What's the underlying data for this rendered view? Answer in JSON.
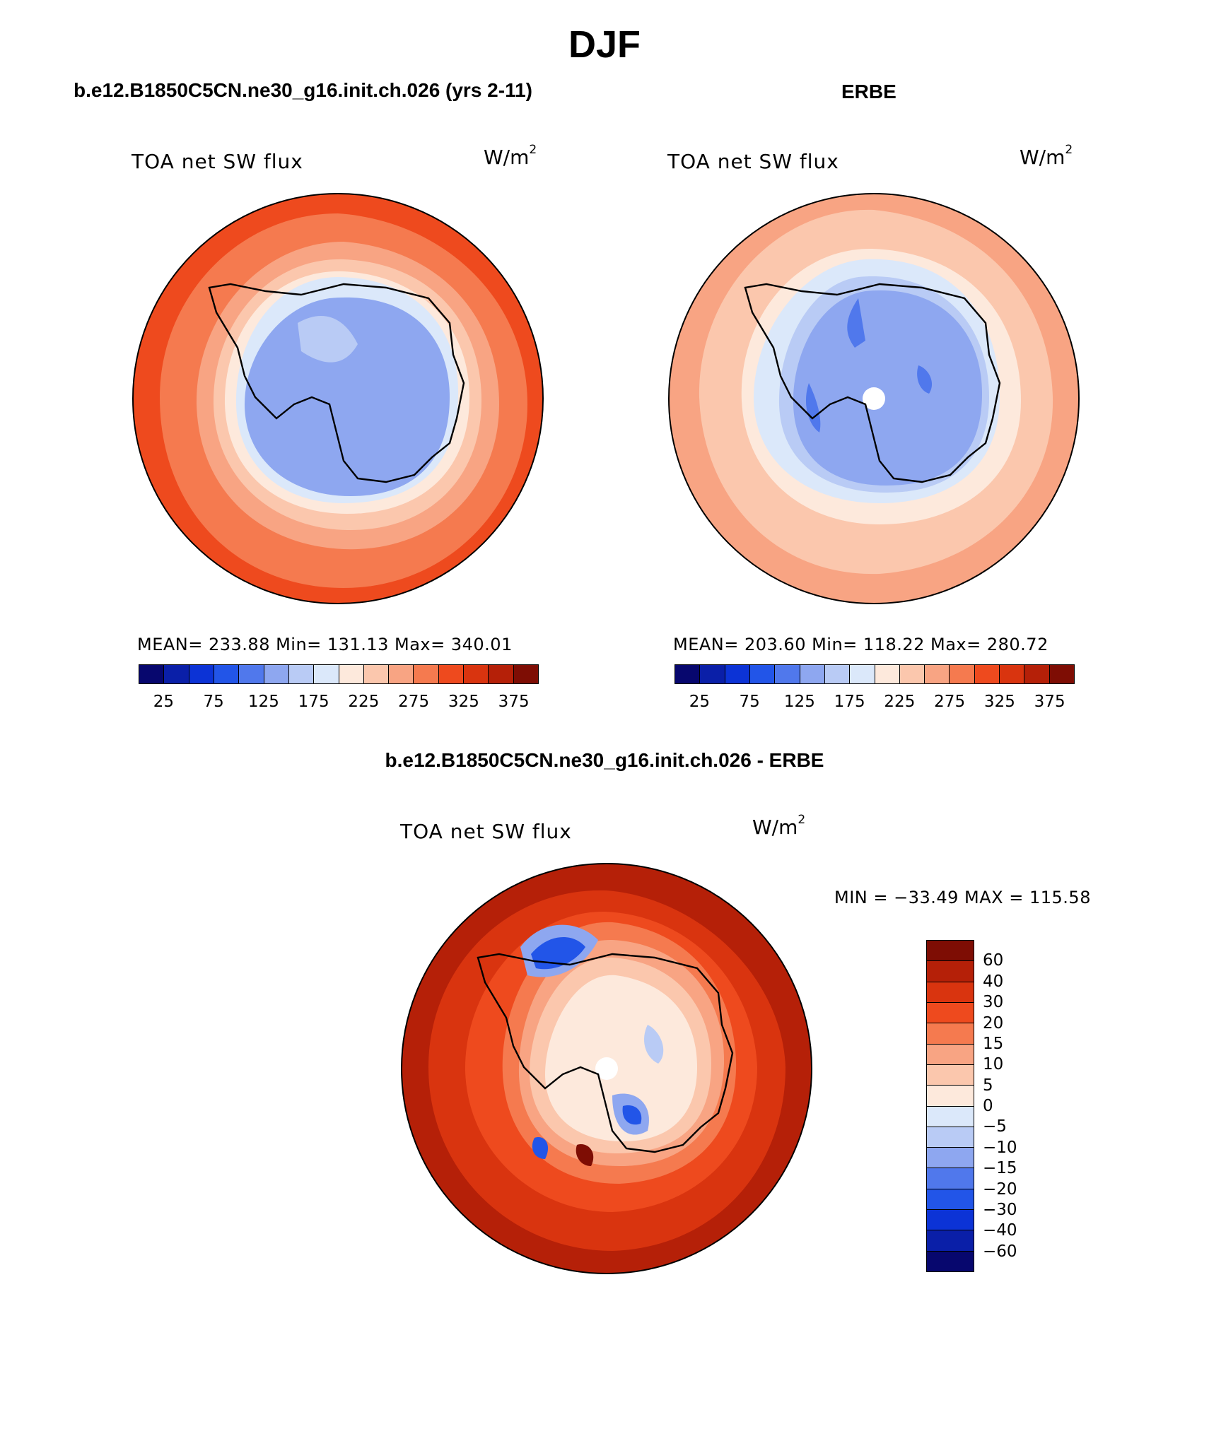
{
  "title": "DJF",
  "panels": [
    {
      "header": "b.e12.B1850C5CN.ne30_g16.init.ch.026 (yrs 2-11)",
      "variable": "TOA net SW flux",
      "units_base": "W/m",
      "units_exp": "2",
      "stats": "MEAN= 233.88   Min= 131.13   Max= 340.01"
    },
    {
      "header": "ERBE",
      "variable": "TOA net SW flux",
      "units_base": "W/m",
      "units_exp": "2",
      "stats": "MEAN= 203.60   Min= 118.22   Max= 280.72"
    },
    {
      "header": "b.e12.B1850C5CN.ne30_g16.init.ch.026 - ERBE",
      "variable": "TOA net SW flux",
      "units_base": "W/m",
      "units_exp": "2",
      "stats": "MIN = −33.49 MAX = 115.58"
    }
  ],
  "colors": {
    "abs_scale": [
      "#07076e",
      "#0a1fa8",
      "#0c33d6",
      "#2255e8",
      "#5078ec",
      "#8ea7f0",
      "#b9cbf5",
      "#dbe8fa",
      "#fde9dc",
      "#fbc7ad",
      "#f8a483",
      "#f57a4f",
      "#ee4a1e",
      "#d9340f",
      "#b52008",
      "#7e0d04"
    ],
    "diff_scale": [
      "#07076e",
      "#0a1fa8",
      "#0c33d6",
      "#2255e8",
      "#5078ec",
      "#8ea7f0",
      "#b9cbf5",
      "#dbe8fa",
      "#fde9dc",
      "#fbc7ad",
      "#f8a483",
      "#f57a4f",
      "#ee4a1e",
      "#d9340f",
      "#b52008",
      "#7e0d04"
    ]
  },
  "chart_data": [
    {
      "type": "heatmap",
      "title": "TOA net SW flux",
      "projection": "south-polar-stereographic",
      "colorbar_orientation": "horizontal",
      "levels": [
        25,
        50,
        75,
        100,
        125,
        150,
        175,
        200,
        225,
        250,
        275,
        300,
        325,
        350,
        375
      ],
      "tick_labels": [
        "25",
        "75",
        "125",
        "175",
        "225",
        "275",
        "325",
        "375"
      ],
      "stats": {
        "mean": 233.88,
        "min": 131.13,
        "max": 340.01
      }
    },
    {
      "type": "heatmap",
      "title": "TOA net SW flux",
      "projection": "south-polar-stereographic",
      "colorbar_orientation": "horizontal",
      "levels": [
        25,
        50,
        75,
        100,
        125,
        150,
        175,
        200,
        225,
        250,
        275,
        300,
        325,
        350,
        375
      ],
      "tick_labels": [
        "25",
        "75",
        "125",
        "175",
        "225",
        "275",
        "325",
        "375"
      ],
      "stats": {
        "mean": 203.6,
        "min": 118.22,
        "max": 280.72
      }
    },
    {
      "type": "heatmap",
      "title": "TOA net SW flux",
      "projection": "south-polar-stereographic",
      "colorbar_orientation": "vertical",
      "levels": [
        -60,
        -40,
        -30,
        -20,
        -15,
        -10,
        -5,
        0,
        5,
        10,
        15,
        20,
        30,
        40,
        60
      ],
      "tick_labels": [
        "60",
        "40",
        "30",
        "20",
        "15",
        "10",
        "5",
        "0",
        "−5",
        "−10",
        "−15",
        "−20",
        "−30",
        "−40",
        "−60"
      ],
      "stats": {
        "min": -33.49,
        "max": 115.58
      }
    }
  ]
}
